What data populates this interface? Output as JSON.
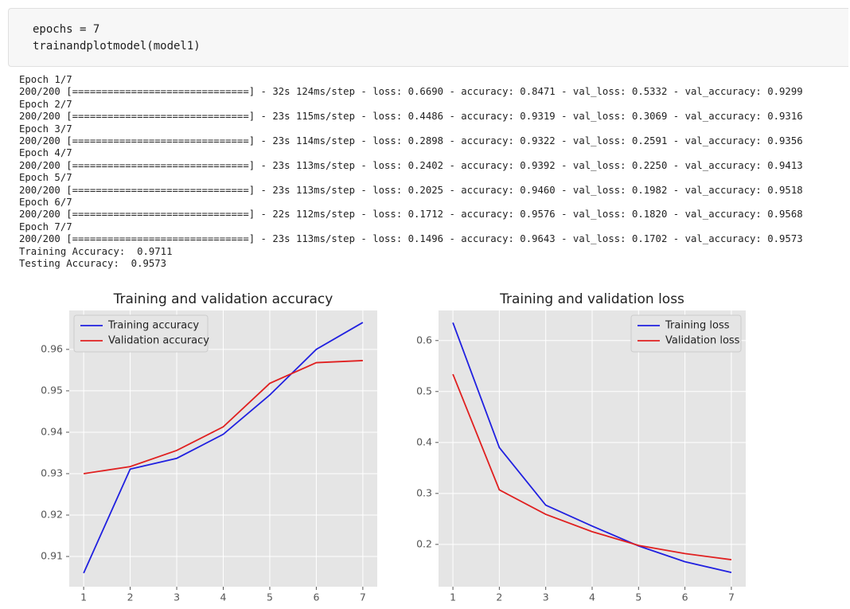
{
  "code": [
    "epochs = 7",
    "trainandplotmodel(model1)"
  ],
  "output": [
    "Epoch 1/7",
    "200/200 [==============================] - 32s 124ms/step - loss: 0.6690 - accuracy: 0.8471 - val_loss: 0.5332 - val_accuracy: 0.9299",
    "Epoch 2/7",
    "200/200 [==============================] - 23s 115ms/step - loss: 0.4486 - accuracy: 0.9319 - val_loss: 0.3069 - val_accuracy: 0.9316",
    "Epoch 3/7",
    "200/200 [==============================] - 23s 114ms/step - loss: 0.2898 - accuracy: 0.9322 - val_loss: 0.2591 - val_accuracy: 0.9356",
    "Epoch 4/7",
    "200/200 [==============================] - 23s 113ms/step - loss: 0.2402 - accuracy: 0.9392 - val_loss: 0.2250 - val_accuracy: 0.9413",
    "Epoch 5/7",
    "200/200 [==============================] - 23s 113ms/step - loss: 0.2025 - accuracy: 0.9460 - val_loss: 0.1982 - val_accuracy: 0.9518",
    "Epoch 6/7",
    "200/200 [==============================] - 22s 112ms/step - loss: 0.1712 - accuracy: 0.9576 - val_loss: 0.1820 - val_accuracy: 0.9568",
    "Epoch 7/7",
    "200/200 [==============================] - 23s 113ms/step - loss: 0.1496 - accuracy: 0.9643 - val_loss: 0.1702 - val_accuracy: 0.9573",
    "Training Accuracy:  0.9711",
    "Testing Accuracy:  0.9573"
  ],
  "chart_data": [
    {
      "type": "line",
      "title": "Training and validation accuracy",
      "x": [
        1,
        2,
        3,
        4,
        5,
        6,
        7
      ],
      "series": [
        {
          "name": "Training accuracy",
          "color": "#2020e0",
          "values": [
            0.906,
            0.9311,
            0.9337,
            0.9395,
            0.949,
            0.96,
            0.9665
          ]
        },
        {
          "name": "Validation accuracy",
          "color": "#e02020",
          "values": [
            0.93,
            0.9317,
            0.9356,
            0.9413,
            0.9518,
            0.9568,
            0.9573
          ]
        }
      ],
      "xlim": [
        0.69,
        7.31
      ],
      "xticks": [
        1,
        2,
        3,
        4,
        5,
        6,
        7
      ],
      "ylim": [
        0.9027,
        0.9694
      ],
      "yticks": [
        0.91,
        0.92,
        0.93,
        0.94,
        0.95,
        0.96
      ],
      "grid": true,
      "legend": "upper left"
    },
    {
      "type": "line",
      "title": "Training and validation loss",
      "x": [
        1,
        2,
        3,
        4,
        5,
        6,
        7
      ],
      "series": [
        {
          "name": "Training loss",
          "color": "#2020e0",
          "values": [
            0.635,
            0.39,
            0.277,
            0.236,
            0.197,
            0.166,
            0.145
          ]
        },
        {
          "name": "Validation loss",
          "color": "#e02020",
          "values": [
            0.534,
            0.307,
            0.259,
            0.225,
            0.198,
            0.182,
            0.17
          ]
        }
      ],
      "xlim": [
        0.69,
        7.31
      ],
      "xticks": [
        1,
        2,
        3,
        4,
        5,
        6,
        7
      ],
      "ylim": [
        0.117,
        0.659
      ],
      "yticks": [
        0.2,
        0.3,
        0.4,
        0.5,
        0.6
      ],
      "grid": true,
      "legend": "upper right"
    }
  ]
}
